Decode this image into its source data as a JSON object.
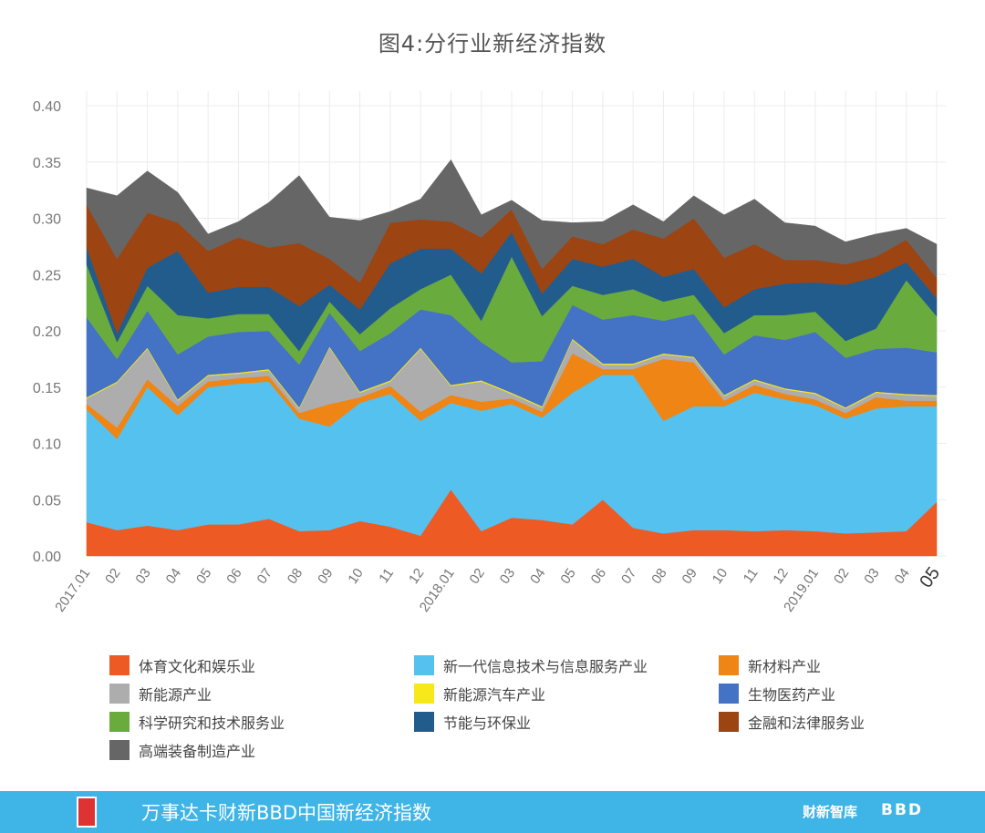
{
  "chart_data": {
    "type": "area",
    "stacked": true,
    "title": "图4:分行业新经济指数",
    "ylim": [
      0,
      0.4
    ],
    "yticks": [
      "0.00",
      "0.05",
      "0.10",
      "0.15",
      "0.20",
      "0.25",
      "0.30",
      "0.35",
      "0.40"
    ],
    "x": [
      "2017.01",
      "02",
      "03",
      "04",
      "05",
      "06",
      "07",
      "08",
      "09",
      "10",
      "11",
      "12",
      "2018.01",
      "02",
      "03",
      "04",
      "05",
      "06",
      "07",
      "08",
      "09",
      "10",
      "11",
      "12",
      "2019.01",
      "02",
      "03",
      "04",
      "05"
    ],
    "grid": true,
    "series": [
      {
        "name": "体育文化和娱乐业",
        "color": "#ee5a24",
        "values": [
          0.03,
          0.023,
          0.027,
          0.023,
          0.028,
          0.028,
          0.033,
          0.022,
          0.023,
          0.031,
          0.026,
          0.018,
          0.059,
          0.022,
          0.034,
          0.032,
          0.028,
          0.05,
          0.025,
          0.02,
          0.023,
          0.023,
          0.022,
          0.023,
          0.022,
          0.02,
          0.021,
          0.022,
          0.048
        ]
      },
      {
        "name": "新一代信息技术与信息服务产业",
        "color": "#55c1ee",
        "values": [
          0.1,
          0.081,
          0.123,
          0.102,
          0.122,
          0.125,
          0.122,
          0.1,
          0.092,
          0.105,
          0.118,
          0.102,
          0.077,
          0.107,
          0.101,
          0.091,
          0.117,
          0.111,
          0.136,
          0.1,
          0.11,
          0.11,
          0.123,
          0.116,
          0.112,
          0.102,
          0.11,
          0.111,
          0.085
        ]
      },
      {
        "name": "新材料产业",
        "color": "#ef8514",
        "values": [
          0.005,
          0.01,
          0.007,
          0.008,
          0.005,
          0.005,
          0.005,
          0.005,
          0.02,
          0.005,
          0.007,
          0.008,
          0.007,
          0.008,
          0.005,
          0.005,
          0.035,
          0.005,
          0.005,
          0.055,
          0.039,
          0.005,
          0.007,
          0.005,
          0.005,
          0.005,
          0.01,
          0.005,
          0.005
        ]
      },
      {
        "name": "新能源产业",
        "color": "#adadad",
        "values": [
          0.005,
          0.04,
          0.027,
          0.005,
          0.005,
          0.004,
          0.005,
          0.004,
          0.05,
          0.004,
          0.004,
          0.056,
          0.008,
          0.018,
          0.004,
          0.004,
          0.012,
          0.004,
          0.004,
          0.004,
          0.004,
          0.004,
          0.004,
          0.004,
          0.005,
          0.004,
          0.004,
          0.005,
          0.004
        ]
      },
      {
        "name": "新能源汽车产业",
        "color": "#f7e81a",
        "values": [
          0.001,
          0.001,
          0.001,
          0.001,
          0.001,
          0.001,
          0.001,
          0.001,
          0.001,
          0.001,
          0.001,
          0.001,
          0.001,
          0.001,
          0.001,
          0.001,
          0.001,
          0.001,
          0.001,
          0.001,
          0.001,
          0.001,
          0.001,
          0.001,
          0.001,
          0.001,
          0.001,
          0.001,
          0.001
        ]
      },
      {
        "name": "生物医药产业",
        "color": "#4472c4",
        "values": [
          0.071,
          0.02,
          0.033,
          0.04,
          0.034,
          0.036,
          0.034,
          0.038,
          0.03,
          0.036,
          0.042,
          0.034,
          0.062,
          0.034,
          0.027,
          0.04,
          0.03,
          0.039,
          0.043,
          0.029,
          0.038,
          0.036,
          0.039,
          0.043,
          0.054,
          0.044,
          0.038,
          0.041,
          0.038
        ]
      },
      {
        "name": "科学研究和技术服务业",
        "color": "#6aab3e",
        "values": [
          0.047,
          0.015,
          0.022,
          0.035,
          0.016,
          0.016,
          0.015,
          0.012,
          0.01,
          0.015,
          0.022,
          0.018,
          0.036,
          0.019,
          0.094,
          0.04,
          0.017,
          0.022,
          0.023,
          0.017,
          0.017,
          0.019,
          0.018,
          0.022,
          0.018,
          0.015,
          0.018,
          0.06,
          0.032
        ]
      },
      {
        "name": "节能与环保业",
        "color": "#225c8c",
        "values": [
          0.015,
          0.008,
          0.016,
          0.057,
          0.023,
          0.024,
          0.024,
          0.04,
          0.015,
          0.022,
          0.04,
          0.036,
          0.023,
          0.042,
          0.022,
          0.02,
          0.024,
          0.025,
          0.027,
          0.022,
          0.023,
          0.023,
          0.023,
          0.028,
          0.026,
          0.05,
          0.046,
          0.016,
          0.016
        ]
      },
      {
        "name": "金融和法律服务业",
        "color": "#9c4412",
        "values": [
          0.038,
          0.066,
          0.049,
          0.025,
          0.037,
          0.044,
          0.035,
          0.056,
          0.023,
          0.024,
          0.036,
          0.026,
          0.024,
          0.032,
          0.02,
          0.022,
          0.02,
          0.02,
          0.026,
          0.034,
          0.045,
          0.044,
          0.04,
          0.021,
          0.02,
          0.018,
          0.018,
          0.02,
          0.018
        ]
      },
      {
        "name": "高端装备制造产业",
        "color": "#666666",
        "values": [
          0.015,
          0.056,
          0.037,
          0.027,
          0.015,
          0.014,
          0.04,
          0.06,
          0.037,
          0.055,
          0.01,
          0.018,
          0.055,
          0.02,
          0.008,
          0.043,
          0.012,
          0.02,
          0.022,
          0.015,
          0.02,
          0.038,
          0.04,
          0.033,
          0.03,
          0.02,
          0.02,
          0.01,
          0.03
        ]
      }
    ]
  },
  "footer": {
    "text": "万事达卡财新BBD中国新经济指数",
    "brand1": "财新智库",
    "brand2": "BBD"
  }
}
